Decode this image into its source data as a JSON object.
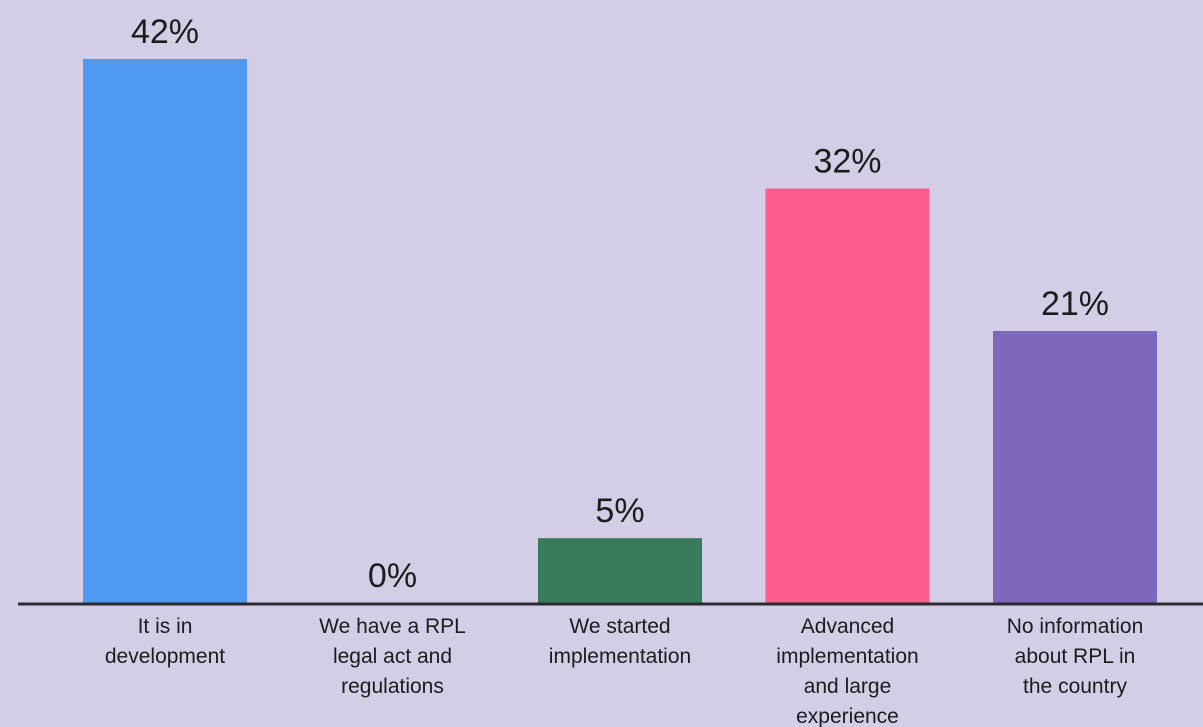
{
  "chart_data": {
    "type": "bar",
    "title": "",
    "xlabel": "",
    "ylabel": "",
    "ylim": [
      0,
      42
    ],
    "grid": false,
    "categories": [
      [
        "It is in",
        "development"
      ],
      [
        "We have a RPL",
        "legal act and",
        "regulations"
      ],
      [
        "We started",
        "implementation"
      ],
      [
        "Advanced",
        "implementation",
        "and large",
        "experience"
      ],
      [
        "No information",
        "about RPL in",
        "the country"
      ]
    ],
    "values": [
      42,
      0,
      5,
      32,
      21
    ],
    "value_labels": [
      "42%",
      "0%",
      "5%",
      "32%",
      "21%"
    ],
    "colors": [
      "#5099f0",
      "#5099f0",
      "#3a7a5c",
      "#fc5c8e",
      "#7d68bc"
    ]
  },
  "colors": {
    "background": "#d3cde6",
    "baseline": "#2b2b33",
    "text": "#1c1c1c"
  }
}
